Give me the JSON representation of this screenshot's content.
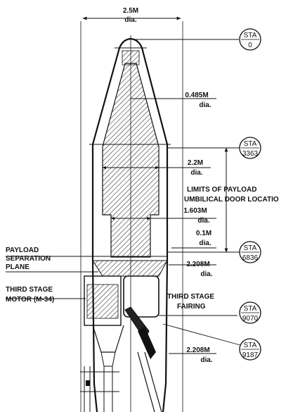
{
  "top_dimension": {
    "value": "2.5M",
    "unit": "dia."
  },
  "dimensions": [
    {
      "id": "d0485",
      "value": "0.485M",
      "unit": "dia."
    },
    {
      "id": "d22",
      "value": "2.2M",
      "unit": "dia."
    },
    {
      "id": "d1603",
      "value": "1.603M",
      "unit": "dia."
    },
    {
      "id": "d01",
      "value": "0.1M",
      "unit": "dia."
    },
    {
      "id": "d2208a",
      "value": "2.208M",
      "unit": "dia."
    },
    {
      "id": "d2208b",
      "value": "2.208M",
      "unit": "dia."
    }
  ],
  "stations": [
    {
      "id": "sta0",
      "label": "STA",
      "value": "0"
    },
    {
      "id": "sta3363",
      "label": "STA",
      "value": "3363"
    },
    {
      "id": "sta6836",
      "label": "STA",
      "value": "6836"
    },
    {
      "id": "sta9070",
      "label": "STA",
      "value": "9070"
    },
    {
      "id": "sta9187",
      "label": "STA",
      "value": "9187"
    }
  ],
  "labels": {
    "umbilical_1": "LIMITS OF PAYLOAD",
    "umbilical_2": "UMBILICAL DOOR LOCATIO",
    "payload_sep_1": "PAYLOAD",
    "payload_sep_2": "SEPARATION",
    "payload_sep_3": "PLANE",
    "third_motor_1": "THIRD STAGE",
    "third_motor_2": "MOTOR (M-34)",
    "third_fairing_1": "THIRD STAGE",
    "third_fairing_2": "FAIRING"
  }
}
